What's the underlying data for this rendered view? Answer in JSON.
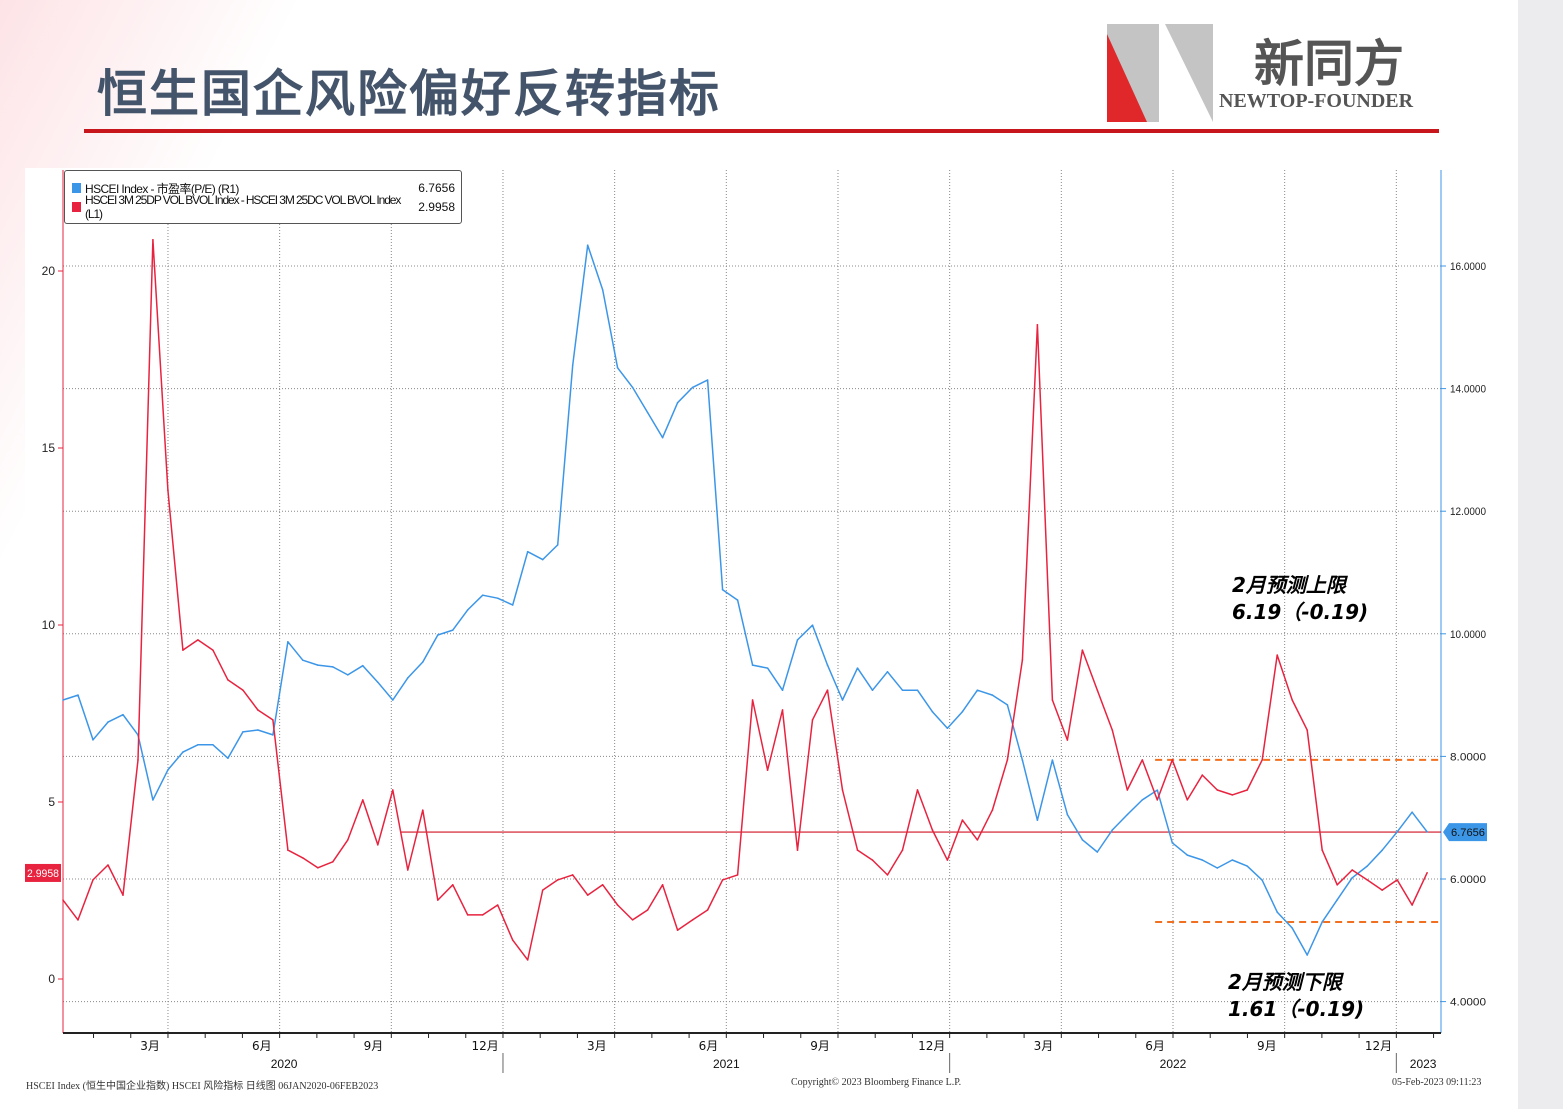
{
  "title": "恒生国企风险偏好反转指标",
  "logo": {
    "cn": "新同方",
    "en": "NEWTOP-FOUNDER"
  },
  "colors": {
    "accent": "#c8161d",
    "pe": "#3c96e8",
    "vol": "#e8233f",
    "band": "#f07020"
  },
  "legend": [
    {
      "label": "HSCEI Index - 市盈率(P/E) (R1)",
      "value": "6.7656"
    },
    {
      "label": "HSCEI 3M 25DP VOL BVOL Index - HSCEI 3M 25DC VOL BVOL Index (L1)",
      "value": "2.9958"
    }
  ],
  "annotations": {
    "upper": {
      "line1": "2月预测上限",
      "line2": "6.19（-0.19)"
    },
    "lower": {
      "line1": "2月预测下限",
      "line2": "1.61（-0.19)"
    }
  },
  "footer": {
    "left": "HSCEI Index (恒生中国企业指数) HSCEI 风险指标  日线图 06JAN2020-06FEB2023",
    "center": "Copyright© 2023 Bloomberg Finance L.P.",
    "right": "05-Feb-2023 09:11:23"
  },
  "chart_data": {
    "type": "line",
    "title": "恒生国企风险偏好反转指标",
    "x_start": 2020.015,
    "x_step_years": 0.03356,
    "x_range": [
      2020.015,
      2023.1
    ],
    "left_axis": {
      "ticks": [
        0,
        5,
        10,
        15,
        20
      ],
      "range": [
        -1.5,
        22.2
      ],
      "last_label": "2.9958"
    },
    "right_axis": {
      "ticks": [
        "4.0000",
        "6.0000",
        "8.0000",
        "10.0000",
        "12.0000",
        "14.0000",
        "16.0000"
      ],
      "tick_values": [
        4,
        6,
        8,
        10,
        12,
        14,
        16
      ],
      "range": [
        3.5,
        17.5
      ],
      "last_label": "6.7656"
    },
    "x_month_labels": [
      {
        "t": 2020.21,
        "label": "3月"
      },
      {
        "t": 2020.46,
        "label": "6月"
      },
      {
        "t": 2020.71,
        "label": "9月"
      },
      {
        "t": 2020.96,
        "label": "12月"
      },
      {
        "t": 2021.21,
        "label": "3月"
      },
      {
        "t": 2021.46,
        "label": "6月"
      },
      {
        "t": 2021.71,
        "label": "9月"
      },
      {
        "t": 2021.96,
        "label": "12月"
      },
      {
        "t": 2022.21,
        "label": "3月"
      },
      {
        "t": 2022.46,
        "label": "6月"
      },
      {
        "t": 2022.71,
        "label": "9月"
      },
      {
        "t": 2022.96,
        "label": "12月"
      }
    ],
    "x_year_labels": [
      {
        "t": 2020.51,
        "label": "2020"
      },
      {
        "t": 2021.5,
        "label": "2021"
      },
      {
        "t": 2022.5,
        "label": "2022"
      },
      {
        "t": 2023.06,
        "label": "2023"
      }
    ],
    "series": [
      {
        "name": "HSCEI Index - 市盈率(P/E) (R1)",
        "axis": "right",
        "values": [
          8.92,
          9.0,
          8.27,
          8.56,
          8.68,
          8.35,
          7.29,
          7.78,
          8.07,
          8.19,
          8.19,
          7.97,
          8.4,
          8.43,
          8.35,
          9.87,
          9.57,
          9.49,
          9.46,
          9.33,
          9.48,
          9.21,
          8.92,
          9.28,
          9.54,
          9.98,
          10.06,
          10.39,
          10.63,
          10.58,
          10.47,
          11.34,
          11.21,
          11.45,
          14.38,
          16.34,
          15.61,
          14.34,
          14.02,
          13.61,
          13.2,
          13.77,
          14.02,
          14.14,
          10.72,
          10.55,
          9.49,
          9.44,
          9.08,
          9.9,
          10.14,
          9.49,
          8.92,
          9.44,
          9.08,
          9.38,
          9.08,
          9.08,
          8.73,
          8.46,
          8.73,
          9.08,
          9.0,
          8.84,
          7.94,
          6.96,
          7.94,
          7.05,
          6.64,
          6.44,
          6.8,
          7.05,
          7.29,
          7.45,
          6.59,
          6.39,
          6.31,
          6.18,
          6.31,
          6.21,
          5.98,
          5.46,
          5.2,
          4.76,
          5.3,
          5.66,
          6.02,
          6.21,
          6.47,
          6.77,
          7.09,
          6.77
        ]
      },
      {
        "name": "HSCEI 3M 25DP VOL BVOL Index - HSCEI 3M 25DC VOL BVOL Index (L1)",
        "axis": "left",
        "values": [
          2.23,
          1.67,
          2.8,
          3.22,
          2.37,
          6.19,
          20.88,
          13.81,
          9.29,
          9.58,
          9.29,
          8.45,
          8.16,
          7.6,
          7.32,
          3.64,
          3.42,
          3.14,
          3.31,
          3.93,
          5.06,
          3.79,
          5.34,
          3.08,
          4.77,
          2.23,
          2.66,
          1.81,
          1.81,
          2.09,
          1.1,
          0.54,
          2.51,
          2.8,
          2.94,
          2.37,
          2.66,
          2.09,
          1.67,
          1.95,
          2.66,
          1.38,
          1.67,
          1.95,
          2.8,
          2.94,
          7.88,
          5.9,
          7.6,
          3.64,
          7.32,
          8.16,
          5.34,
          3.64,
          3.36,
          2.94,
          3.64,
          5.34,
          4.21,
          3.36,
          4.49,
          3.93,
          4.77,
          6.19,
          9.01,
          18.48,
          7.88,
          6.75,
          9.29,
          8.16,
          7.03,
          5.34,
          6.19,
          5.06,
          6.19,
          5.06,
          5.76,
          5.34,
          5.2,
          5.34,
          6.19,
          9.15,
          7.88,
          7.03,
          3.64,
          2.66,
          3.08,
          2.8,
          2.51,
          2.8,
          2.09,
          3.0
        ]
      }
    ],
    "reference_lines": [
      {
        "axis": "right",
        "value": 6.7656,
        "from": 2020.77,
        "style": "solid"
      },
      {
        "axis": "left",
        "value": 6.19,
        "from": 2022.46,
        "style": "dashed"
      },
      {
        "axis": "left",
        "value": 1.61,
        "from": 2022.46,
        "style": "dashed"
      }
    ]
  }
}
